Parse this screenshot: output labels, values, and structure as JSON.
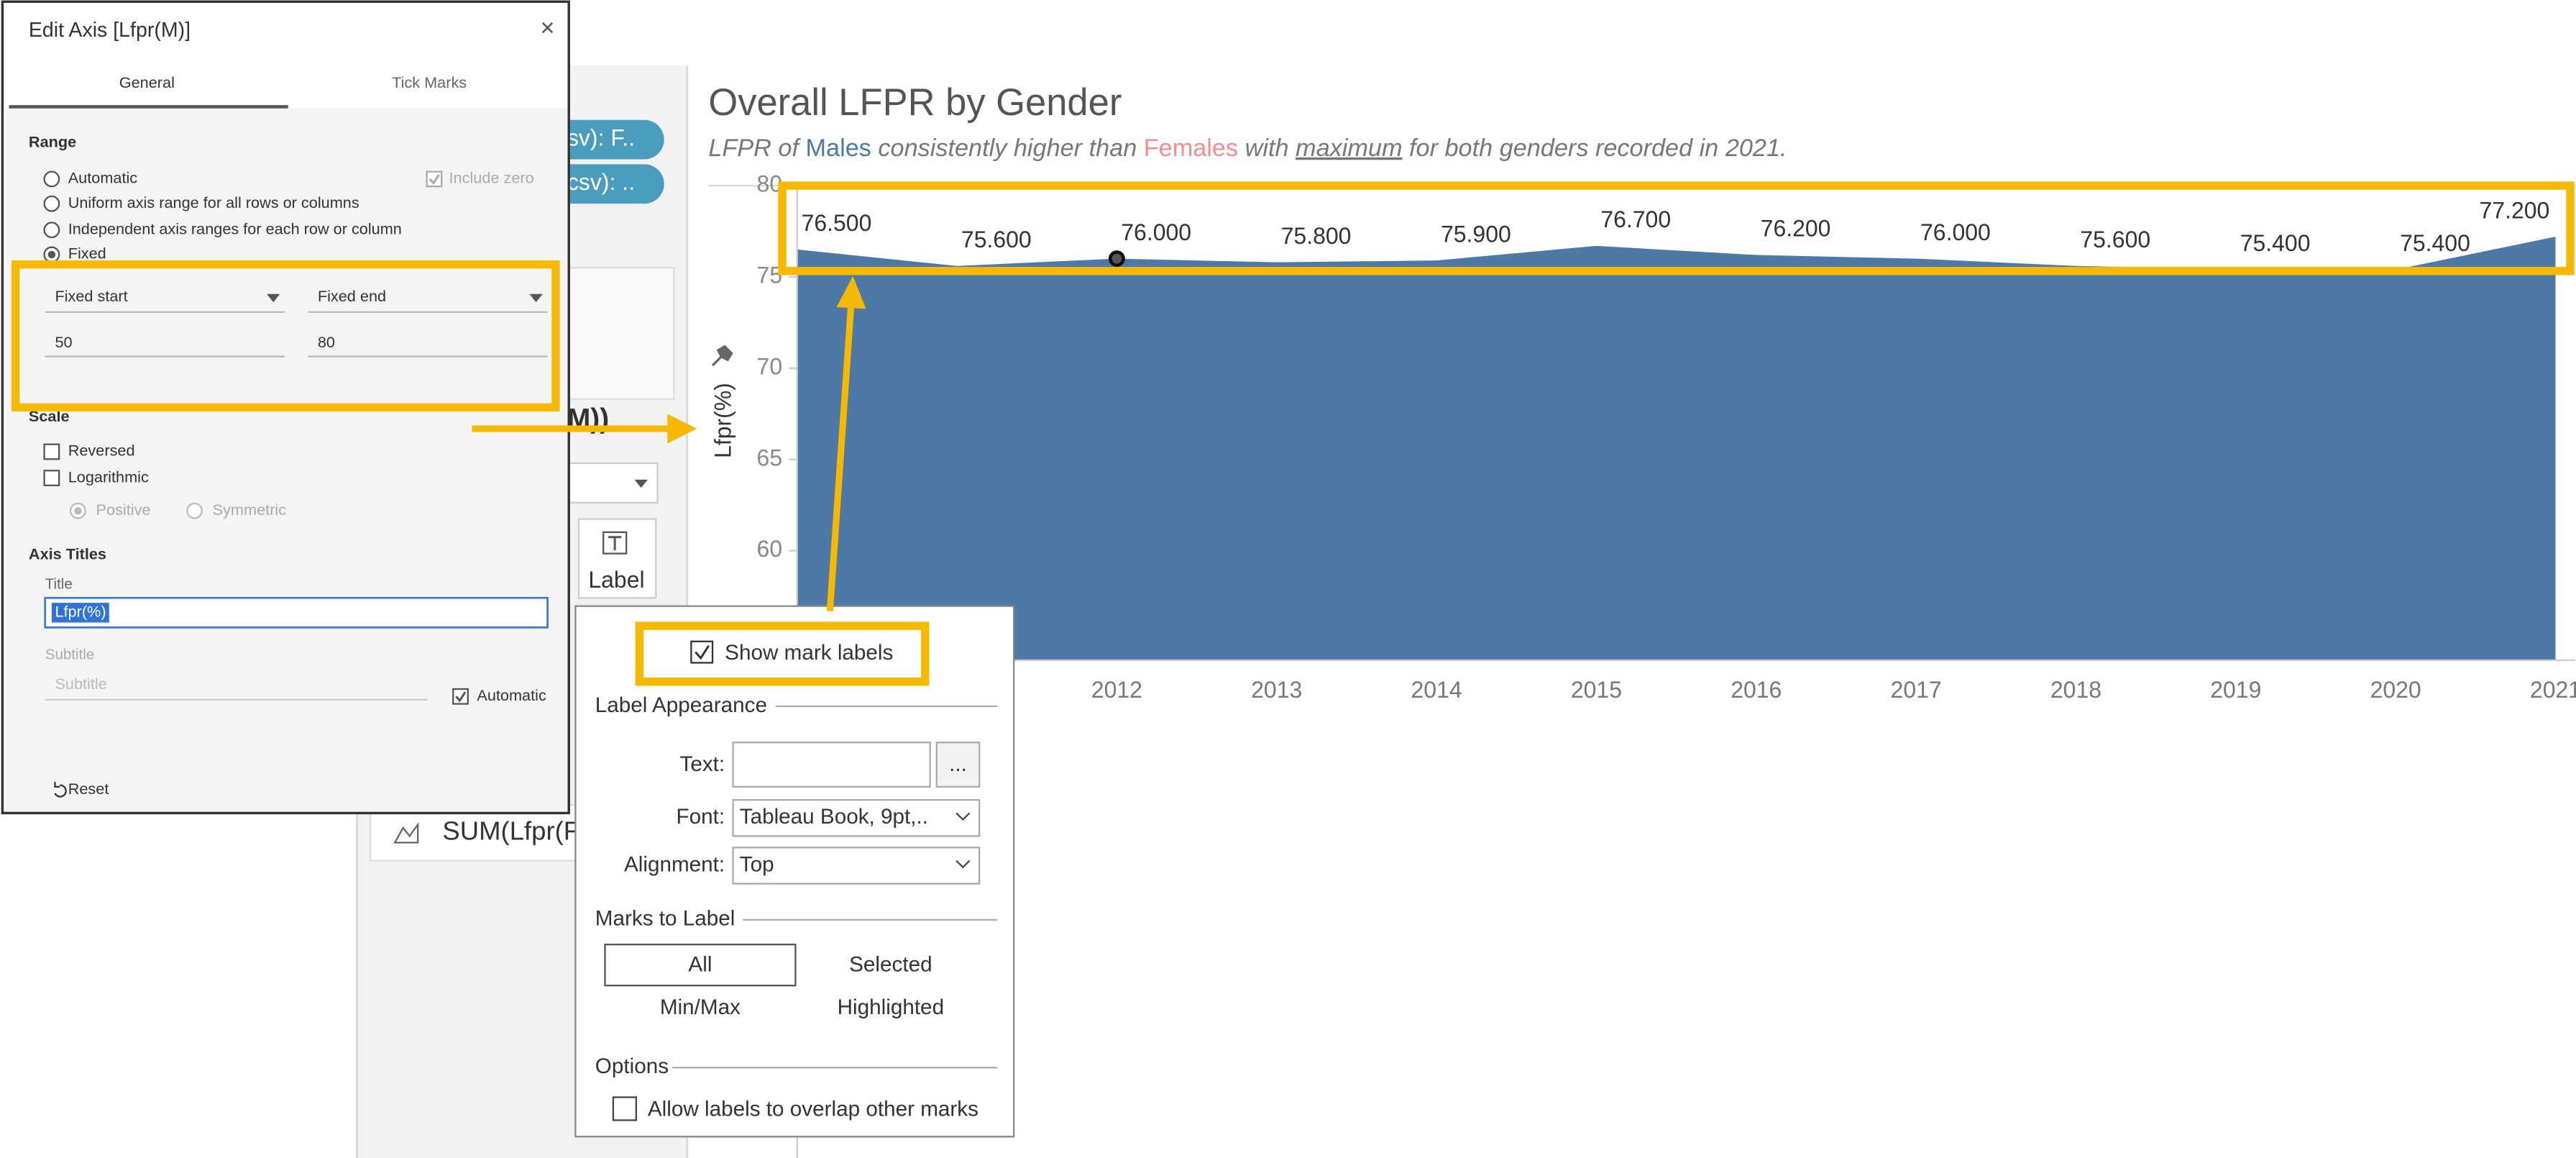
{
  "edit_axis_dialog": {
    "title": "Edit Axis [Lfpr(M)]",
    "close": "×",
    "tabs": [
      "General",
      "Tick Marks"
    ],
    "range": {
      "heading": "Range",
      "options": [
        "Automatic",
        "Uniform axis range for all rows or columns",
        "Independent axis ranges for each row or column",
        "Fixed"
      ],
      "include_zero": "Include zero",
      "start_mode": "Fixed start",
      "end_mode": "Fixed end",
      "start": "50",
      "end": "80"
    },
    "scale": {
      "heading": "Scale",
      "options": [
        "Reversed",
        "Logarithmic"
      ],
      "log_options": [
        "Positive",
        "Symmetric"
      ]
    },
    "axis_titles": {
      "heading": "Axis Titles",
      "title_label": "Title",
      "title": "Lfpr(%)",
      "subtitle_label": "Subtitle",
      "subtitle_placeholder": "Subtitle",
      "automatic": "Automatic"
    },
    "reset": "Reset"
  },
  "background_panel": {
    "pills": [
      "sv): F..",
      "csv): .."
    ],
    "field": "M))",
    "label_button": "Label",
    "measure": "SUM(Lfpr(F"
  },
  "label_popup": {
    "show_mark_labels": "Show mark labels",
    "label_appearance": "Label Appearance",
    "text_label": "Text:",
    "more_button": "...",
    "font_label": "Font:",
    "font_value": "Tableau Book, 9pt,..",
    "alignment_label": "Alignment:",
    "alignment_value": "Top",
    "marks_to_label": "Marks to Label",
    "marks_options": [
      "All",
      "Selected",
      "Min/Max",
      "Highlighted"
    ],
    "options": "Options",
    "allow_overlap": "Allow labels to overlap other marks"
  },
  "chart_data": {
    "type": "area",
    "title": "Overall LFPR by Gender",
    "subtitle_parts": [
      "LFPR of ",
      "Males",
      " consistently higher than ",
      "Females",
      " with ",
      "maximum",
      " for both genders recorded in 2021."
    ],
    "y_label": "Lfpr(%)",
    "categories": [
      null,
      null,
      "2012",
      "2013",
      "2014",
      "2015",
      "2016",
      "2017",
      "2018",
      "2019",
      "2020",
      "2021"
    ],
    "series": [
      {
        "name": "Males",
        "color": "#4e79a7",
        "values": [
          76.5,
          75.6,
          76.0,
          75.8,
          75.9,
          76.7,
          76.2,
          76.0,
          75.6,
          75.4,
          75.4,
          77.2
        ],
        "value_labels": [
          "76.500",
          "75.600",
          "76.000",
          "75.800",
          "75.900",
          "76.700",
          "76.200",
          "76.000",
          "75.600",
          "75.400",
          "75.400",
          "77.200"
        ]
      }
    ],
    "ylim": [
      54,
      80
    ],
    "yticks": [
      60,
      65,
      70,
      75,
      80
    ]
  }
}
